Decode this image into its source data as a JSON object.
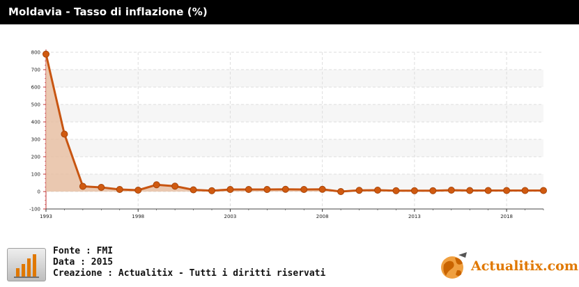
{
  "header": {
    "title": "Moldavia - Tasso di inflazione (%)"
  },
  "chart_data": {
    "type": "area",
    "title": "Moldavia - Tasso di inflazione (%)",
    "x": [
      1993,
      1994,
      1995,
      1996,
      1997,
      1998,
      1999,
      2000,
      2001,
      2002,
      2003,
      2004,
      2005,
      2006,
      2007,
      2008,
      2009,
      2010,
      2011,
      2012,
      2013,
      2014,
      2015,
      2016,
      2017,
      2018,
      2019,
      2020
    ],
    "values": [
      789,
      330,
      30,
      24,
      12,
      8,
      39,
      31,
      10,
      5,
      12,
      12,
      12,
      13,
      12,
      13,
      0,
      7,
      8,
      5,
      5,
      5,
      8,
      6,
      6,
      6,
      6,
      6
    ],
    "ylim": [
      -100,
      800
    ],
    "yticks": [
      -100,
      0,
      100,
      200,
      300,
      400,
      500,
      600,
      700,
      800
    ],
    "xticks": [
      1993,
      1998,
      2003,
      2008,
      2013,
      2018
    ],
    "grid": true,
    "colors": {
      "line": "#c85511",
      "fill": "#e8c0a3",
      "marker": "#d05a10"
    }
  },
  "footer": {
    "source": "Fonte : FMI",
    "date": "Data : 2015",
    "credit": "Creazione : Actualitix - Tutti i diritti riservati",
    "icon": "bar-chart-icon"
  },
  "brand": {
    "name": "Actualitix.com",
    "icon": "globe-icon"
  }
}
